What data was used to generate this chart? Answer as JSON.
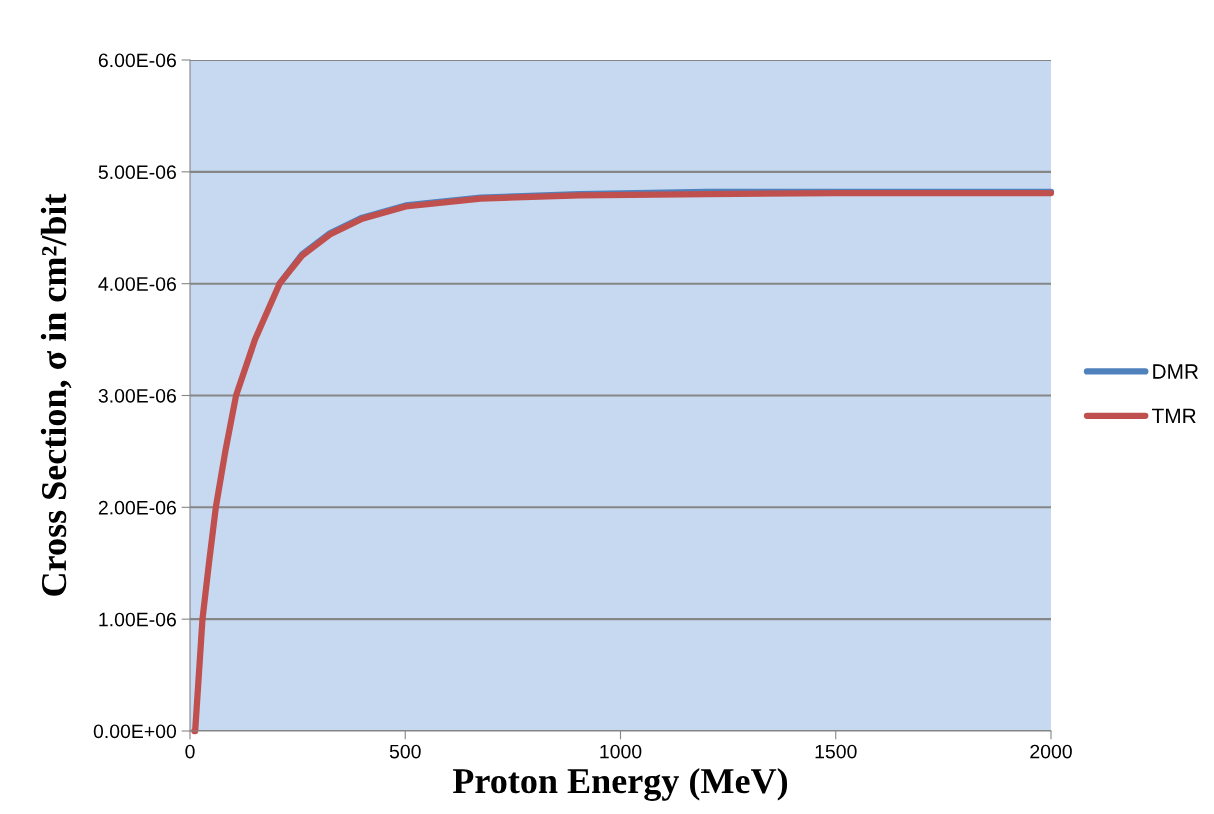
{
  "chart_data": {
    "type": "line",
    "xlabel": "Proton Energy (MeV)",
    "ylabel": "Cross Section, σ in cm²/bit",
    "xlim": [
      0,
      2000
    ],
    "xticks": [
      0,
      500,
      1000,
      1500,
      2000
    ],
    "ylim": [
      0,
      6e-06
    ],
    "yticks": [
      {
        "value": 0,
        "label": "0.00E+00"
      },
      {
        "value": 1e-06,
        "label": "1.00E-06"
      },
      {
        "value": 2e-06,
        "label": "2.00E-06"
      },
      {
        "value": 3e-06,
        "label": "3.00E-06"
      },
      {
        "value": 4e-06,
        "label": "4.00E-06"
      },
      {
        "value": 5e-06,
        "label": "5.00E-06"
      },
      {
        "value": 6e-06,
        "label": "6.00E-06"
      }
    ],
    "grid": "y",
    "legend": "right",
    "marker": "none",
    "line_style": "solid",
    "series": [
      {
        "name": "DMR",
        "color": "#4f81bd",
        "x": [
          208,
          260,
          325,
          400,
          501,
          675,
          905,
          1200,
          1500,
          2000
        ],
        "values": [
          4e-06,
          4.26e-06,
          4.45e-06,
          4.59e-06,
          4.7e-06,
          4.77e-06,
          4.8e-06,
          4.82e-06,
          4.82e-06,
          4.82e-06
        ]
      },
      {
        "name": "TMR",
        "color": "#c0504d",
        "x": [
          10,
          12,
          29,
          44,
          60,
          82,
          107,
          151,
          208,
          260,
          325,
          400,
          501,
          675,
          905,
          1200,
          1500,
          2000
        ],
        "values": [
          0,
          0,
          1e-06,
          1.5e-06,
          2e-06,
          2.5e-06,
          3e-06,
          3.5e-06,
          4e-06,
          4.25e-06,
          4.44e-06,
          4.58e-06,
          4.69e-06,
          4.76e-06,
          4.79e-06,
          4.8e-06,
          4.81e-06,
          4.81e-06
        ]
      }
    ]
  }
}
